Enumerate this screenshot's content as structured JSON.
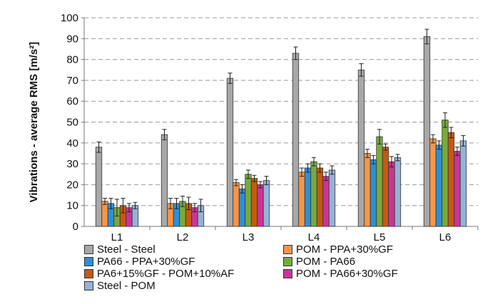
{
  "chart_data": {
    "type": "bar",
    "title": "",
    "xlabel": "",
    "ylabel": "Vibrations - average RMS [m/s²]",
    "ylim": [
      0,
      100
    ],
    "yticks": [
      0,
      10,
      20,
      30,
      40,
      50,
      60,
      70,
      80,
      90,
      100
    ],
    "grid": true,
    "legend_position": "bottom",
    "categories": [
      "L1",
      "L2",
      "L3",
      "L4",
      "L5",
      "L6"
    ],
    "series": [
      {
        "name": "Steel - Steel",
        "color": "#a8a8a8",
        "values": [
          38,
          44,
          71,
          83,
          75,
          91
        ],
        "errors": [
          2.5,
          2.5,
          2.5,
          3,
          3,
          3.5
        ]
      },
      {
        "name": "POM - PPA+30%GF",
        "color": "#f79646",
        "values": [
          12,
          11,
          21,
          26,
          35,
          42
        ],
        "errors": [
          1.5,
          2.5,
          1.5,
          2,
          2,
          2
        ]
      },
      {
        "name": "PA66 - PPA+30%GF",
        "color": "#2e8fd6",
        "values": [
          11,
          11,
          18,
          28,
          32,
          39
        ],
        "errors": [
          2.5,
          2.5,
          2,
          2,
          2,
          2
        ]
      },
      {
        "name": "POM - PA66",
        "color": "#77ab3c",
        "values": [
          9,
          12,
          25,
          31,
          43,
          51
        ],
        "errors": [
          4,
          2.5,
          2,
          2,
          3.5,
          3.5
        ]
      },
      {
        "name": "PA6+15%GF - POM+10%AF",
        "color": "#c55a11",
        "values": [
          10,
          11,
          23,
          28,
          38,
          45
        ],
        "errors": [
          3.5,
          3,
          1.5,
          2,
          1.5,
          2.5
        ]
      },
      {
        "name": "POM - PA66+30%GF",
        "color": "#cc3399",
        "values": [
          9,
          9,
          20,
          24,
          31,
          36
        ],
        "errors": [
          2,
          2,
          1.5,
          2,
          2.5,
          2
        ]
      },
      {
        "name": "Steel - POM",
        "color": "#95b3d7",
        "values": [
          10,
          10,
          22,
          27,
          33,
          41
        ],
        "errors": [
          1.5,
          3,
          2,
          2,
          1.5,
          2.5
        ]
      }
    ]
  }
}
